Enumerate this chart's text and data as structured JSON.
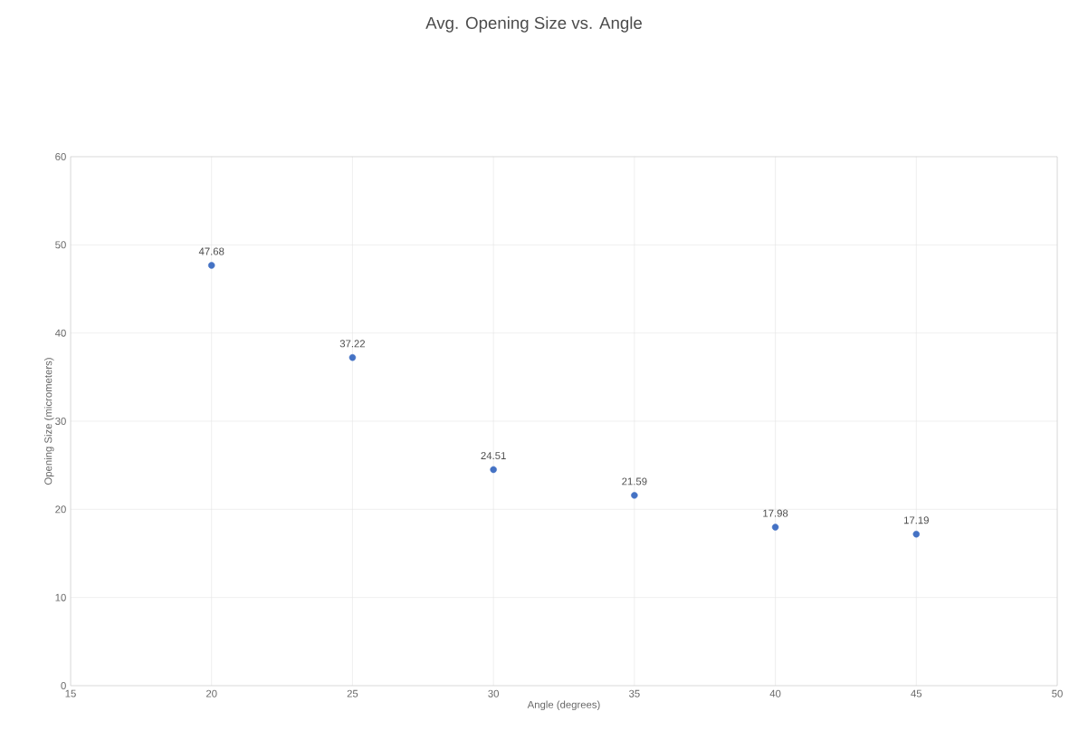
{
  "chart_data": {
    "type": "scatter",
    "title": "Avg. Opening Size vs. Angle",
    "xlabel": "Angle (degrees)",
    "ylabel": "Opening Size (micrometers)",
    "x": [
      20,
      25,
      30,
      35,
      40,
      45
    ],
    "series": [
      {
        "color": "#4472c4",
        "values": [
          47.68,
          37.22,
          24.51,
          21.59,
          17.98,
          17.19
        ],
        "value_labels": [
          "47.68",
          "37.22",
          "24.51",
          "21.59",
          "17.98",
          "17.19"
        ]
      }
    ],
    "xlim": [
      15,
      50
    ],
    "xticks": [
      15,
      20,
      25,
      30,
      35,
      40,
      45,
      50
    ],
    "ylim": [
      0,
      60
    ],
    "yticks": [
      0,
      10,
      20,
      30,
      40,
      50,
      60
    ],
    "grid": true,
    "marker": "circle"
  }
}
